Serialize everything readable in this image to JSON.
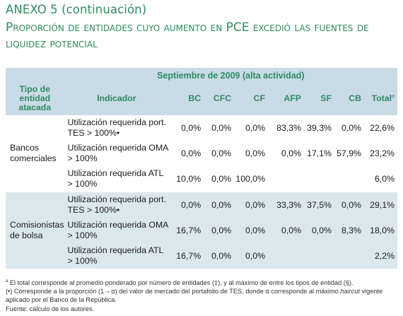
{
  "title": "ANEXO 5 (continuación)",
  "subtitle": "Proporción de entidades cuyo aumento en PCE excedió las fuentes de liquidez potencial",
  "table": {
    "period": "Septiembre de 2009 (alta actividad)",
    "headers": {
      "tipo": "Tipo de entidad atacada",
      "indicador": "Indicador",
      "cols": [
        "BC",
        "CFC",
        "CF",
        "AFP",
        "SF",
        "CB"
      ],
      "total": "Total",
      "total_sup": "a"
    },
    "groups": [
      {
        "entity": "Bancos comerciales",
        "rows": [
          {
            "indicator": "Utilización requerida port. TES > 100%•",
            "values": [
              "0,0%",
              "0,0%",
              "0,0%",
              "83,3%",
              "39,3%",
              "0,0%"
            ],
            "total": "22,6%"
          },
          {
            "indicator": "Utilización requerida OMA > 100%",
            "values": [
              "0,0%",
              "0,0%",
              "0,0%",
              "0,0%",
              "17,1%",
              "57,9%"
            ],
            "total": "23,2%"
          },
          {
            "indicator": "Utilización requerida ATL > 100%",
            "values": [
              "10,0%",
              "0,0%",
              "100,0%",
              "",
              "",
              ""
            ],
            "total": "6,0%"
          }
        ]
      },
      {
        "entity": "Comisionistas de bolsa",
        "rows": [
          {
            "indicator": "Utilización requerida port. TES > 100%•",
            "values": [
              "0,0%",
              "0,0%",
              "0,0%",
              "33,3%",
              "37,5%",
              "0,0%"
            ],
            "total": "29,1%"
          },
          {
            "indicator": "Utilización requerida OMA > 100%",
            "values": [
              "16,7%",
              "0,0%",
              "0,0%",
              "0,0%",
              "0,0%",
              "8,3%"
            ],
            "total": "18,0%"
          },
          {
            "indicator": "Utilización requerida ATL > 100%",
            "values": [
              "16,7%",
              "0,0%",
              "0,0%",
              "",
              "",
              ""
            ],
            "total": "2,2%"
          }
        ]
      }
    ]
  },
  "notes": {
    "note_a_marker": "a",
    "note_a": "El total corresponde al promedio ponderado por número de entidades (‡), y al máximo de entre los tipos de entidad (§).",
    "note_dot_start": "(•) Corresponde a la proporción (1 – α) del valor de mercado del portafolio de TES, donde α corresponde al máximo ",
    "note_dot_italic": "haircut",
    "note_dot_end": " vigente aplicado por el Banco de la República.",
    "source": "Fuente: cálculo de los autores."
  }
}
